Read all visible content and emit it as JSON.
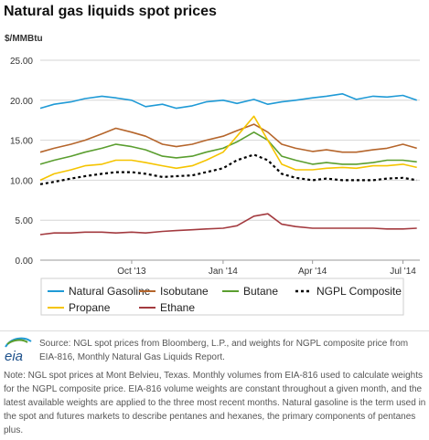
{
  "title": "Natural gas liquids spot prices",
  "source_text": "Source: NGL spot prices from Bloomberg, L.P., and weights for NGPL composite price from EIA-816, Monthly Natural Gas Liquids Report.",
  "note_text": "Note: NGL spot prices at Mont Belvieu, Texas. Monthly volumes from EIA-816 used to calculate weights for the NGPL composite price. EIA-816 volume weights are constant throughout a given month, and the latest available weights are applied to the three most recent months. Natural gasoline is the term used in the spot and futures markets to describe pentanes and hexanes, the primary components of pentanes plus.",
  "logo_text": "eia",
  "chart_data": {
    "type": "line",
    "title": "Natural gas liquids spot prices",
    "ylabel": "$/MMBtu",
    "xlabel": "",
    "ylim": [
      0,
      25
    ],
    "yticks": [
      "0.00",
      "5.00",
      "10.00",
      "15.00",
      "20.00",
      "25.00"
    ],
    "xlim": [
      "2013-07-01",
      "2014-07-18"
    ],
    "xticks": [
      {
        "label": "Oct '13",
        "date": "2013-10-01"
      },
      {
        "label": "Jan '14",
        "date": "2014-01-01"
      },
      {
        "label": "Apr '14",
        "date": "2014-04-01"
      },
      {
        "label": "Jul '14",
        "date": "2014-07-01"
      }
    ],
    "grid": true,
    "legend_position": "bottom",
    "x": [
      "2013-07-01",
      "2013-07-15",
      "2013-08-01",
      "2013-08-15",
      "2013-09-01",
      "2013-09-15",
      "2013-10-01",
      "2013-10-15",
      "2013-11-01",
      "2013-11-15",
      "2013-12-01",
      "2013-12-15",
      "2014-01-01",
      "2014-01-15",
      "2014-02-01",
      "2014-02-15",
      "2014-03-01",
      "2014-03-15",
      "2014-04-01",
      "2014-04-15",
      "2014-05-01",
      "2014-05-15",
      "2014-06-01",
      "2014-06-15",
      "2014-07-01",
      "2014-07-15"
    ],
    "series": [
      {
        "name": "Natural Gasoline",
        "color": "#1f9ad6",
        "values": [
          19.0,
          19.5,
          19.8,
          20.2,
          20.5,
          20.3,
          20.0,
          19.2,
          19.5,
          19.0,
          19.3,
          19.8,
          20.0,
          19.6,
          20.1,
          19.5,
          19.8,
          20.0,
          20.3,
          20.5,
          20.8,
          20.1,
          20.5,
          20.4,
          20.6,
          20.0
        ]
      },
      {
        "name": "Isobutane",
        "color": "#b5652b",
        "values": [
          13.5,
          14.0,
          14.5,
          15.0,
          15.8,
          16.5,
          16.0,
          15.5,
          14.5,
          14.2,
          14.5,
          15.0,
          15.5,
          16.2,
          17.0,
          16.0,
          14.5,
          14.0,
          13.6,
          13.8,
          13.5,
          13.5,
          13.8,
          14.0,
          14.5,
          14.0
        ]
      },
      {
        "name": "Butane",
        "color": "#5a9e2f",
        "values": [
          12.0,
          12.5,
          13.0,
          13.5,
          14.0,
          14.5,
          14.2,
          13.8,
          13.0,
          12.8,
          13.0,
          13.5,
          14.0,
          14.8,
          16.0,
          15.0,
          13.0,
          12.5,
          12.0,
          12.2,
          12.0,
          12.0,
          12.2,
          12.5,
          12.5,
          12.3
        ]
      },
      {
        "name": "NGPL Composite",
        "color": "#000000",
        "dashed": true,
        "values": [
          9.5,
          9.8,
          10.2,
          10.5,
          10.8,
          11.0,
          11.0,
          10.8,
          10.4,
          10.5,
          10.6,
          11.0,
          11.5,
          12.5,
          13.2,
          12.5,
          10.8,
          10.3,
          10.0,
          10.2,
          10.0,
          10.0,
          10.0,
          10.2,
          10.3,
          10.0
        ]
      },
      {
        "name": "Propane",
        "color": "#f5c400",
        "values": [
          10.0,
          10.8,
          11.3,
          11.8,
          12.0,
          12.5,
          12.5,
          12.2,
          11.8,
          11.5,
          11.8,
          12.5,
          13.5,
          15.5,
          18.0,
          15.0,
          12.0,
          11.3,
          11.3,
          11.5,
          11.6,
          11.5,
          11.8,
          11.8,
          12.0,
          11.6
        ]
      },
      {
        "name": "Ethane",
        "color": "#a33a3f",
        "values": [
          3.2,
          3.4,
          3.4,
          3.5,
          3.5,
          3.4,
          3.5,
          3.4,
          3.6,
          3.7,
          3.8,
          3.9,
          4.0,
          4.3,
          5.5,
          5.8,
          4.5,
          4.2,
          4.0,
          4.0,
          4.0,
          4.0,
          4.0,
          3.9,
          3.9,
          4.0
        ]
      }
    ]
  }
}
